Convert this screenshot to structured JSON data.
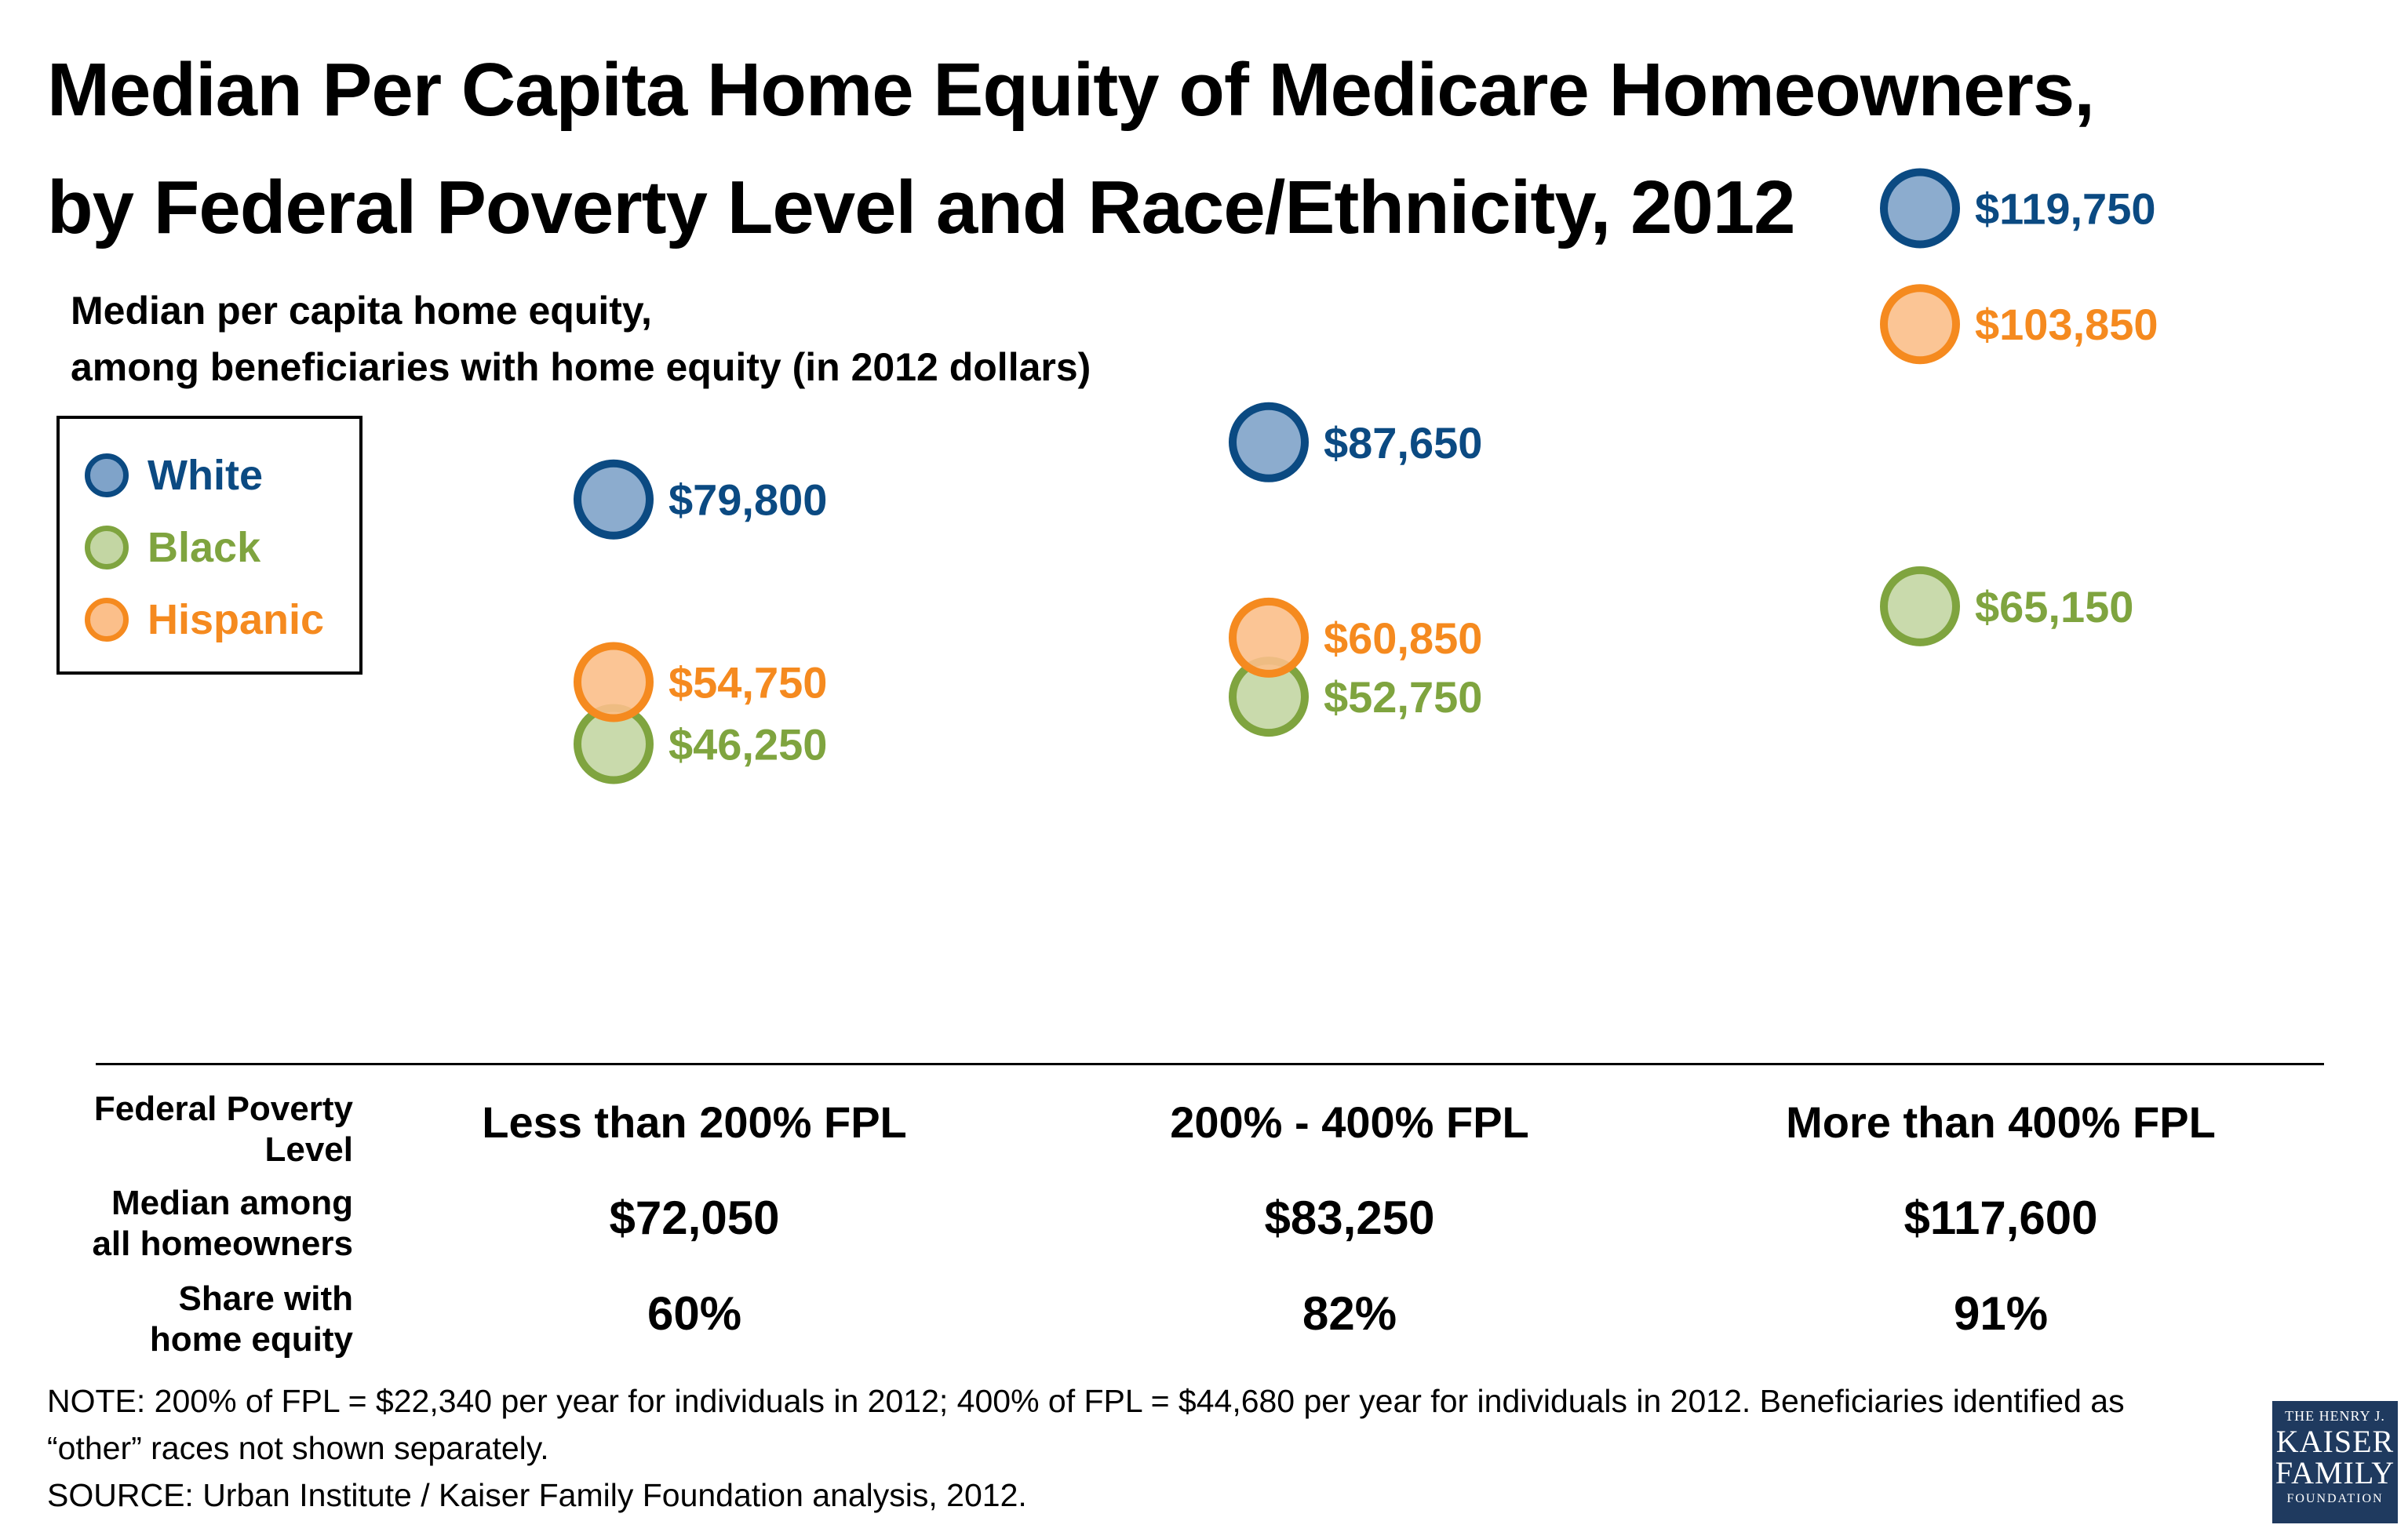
{
  "title_lines": [
    "Median Per Capita Home Equity of Medicare Homeowners,",
    "by Federal Poverty Level and Race/Ethnicity, 2012"
  ],
  "subtitle_lines": [
    "Median per capita home equity,",
    "among beneficiaries with home equity (in 2012 dollars)"
  ],
  "legend": [
    {
      "label": "White",
      "stroke": "#0b4a82",
      "fill": "#7fa3c9",
      "text": "#0b4a82"
    },
    {
      "label": "Black",
      "stroke": "#7fa43f",
      "fill": "#c3d6a3",
      "text": "#7fa43f"
    },
    {
      "label": "Hispanic",
      "stroke": "#f58a1f",
      "fill": "#fbbf8a",
      "text": "#f58a1f"
    }
  ],
  "chart_data": {
    "type": "scatter",
    "categories": [
      "Less than 200% FPL",
      "200% - 400% FPL",
      "More than 400% FPL"
    ],
    "series": [
      {
        "name": "White",
        "values": [
          79800,
          87650,
          119750
        ],
        "labels": [
          "$79,800",
          "$87,650",
          "$119,750"
        ]
      },
      {
        "name": "Black",
        "values": [
          46250,
          52750,
          65150
        ],
        "labels": [
          "$46,250",
          "$52,750",
          "$65,150"
        ]
      },
      {
        "name": "Hispanic",
        "values": [
          54750,
          60850,
          103850
        ],
        "labels": [
          "$54,750",
          "$60,850",
          "$103,850"
        ]
      }
    ],
    "grid": false,
    "legend_position": "top-left"
  },
  "table": {
    "row_labels": {
      "fpl": [
        "Federal Poverty",
        "Level"
      ],
      "median": [
        "Median among",
        "all homeowners"
      ],
      "share": [
        "Share with",
        "home equity"
      ]
    },
    "median_values": [
      "$72,050",
      "$83,250",
      "$117,600"
    ],
    "share_values": [
      "60%",
      "82%",
      "91%"
    ]
  },
  "note_lines": [
    "NOTE: 200% of FPL = $22,340 per year for individuals in 2012; 400% of FPL = $44,680 per year for individuals in 2012. Beneficiaries identified as",
    "“other” races not shown separately.",
    "SOURCE: Urban Institute / Kaiser Family Foundation analysis, 2012."
  ],
  "logo": {
    "line1": "THE HENRY J.",
    "line2": "KAISER",
    "line3": "FAMILY",
    "line4": "FOUNDATION"
  }
}
